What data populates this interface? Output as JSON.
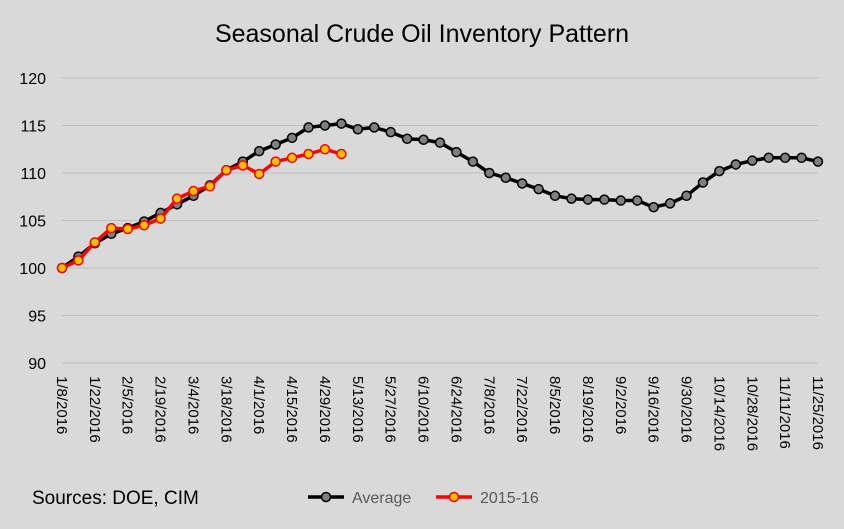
{
  "chart_data": {
    "type": "line",
    "title": "Seasonal Crude Oil Inventory Pattern",
    "source": "Sources:  DOE, CIM",
    "xlabel": "",
    "ylabel": "",
    "ylim": [
      90,
      120
    ],
    "yticks": [
      90,
      95,
      100,
      105,
      110,
      115,
      120
    ],
    "xtick_labels": [
      "1/8/2016",
      "1/22/2016",
      "2/5/2016",
      "2/19/2016",
      "3/4/2016",
      "3/18/2016",
      "4/1/2016",
      "4/15/2016",
      "4/29/2016",
      "5/13/2016",
      "5/27/2016",
      "6/10/2016",
      "6/24/2016",
      "7/8/2016",
      "7/22/2016",
      "8/5/2016",
      "8/19/2016",
      "9/2/2016",
      "9/16/2016",
      "9/30/2016",
      "10/14/2016",
      "10/28/2016",
      "11/11/2016",
      "11/25/2016"
    ],
    "x_weeks": [
      "1/8/2016",
      "1/15/2016",
      "1/22/2016",
      "1/29/2016",
      "2/5/2016",
      "2/12/2016",
      "2/19/2016",
      "2/26/2016",
      "3/4/2016",
      "3/11/2016",
      "3/18/2016",
      "3/25/2016",
      "4/1/2016",
      "4/8/2016",
      "4/15/2016",
      "4/22/2016",
      "4/29/2016",
      "5/6/2016",
      "5/13/2016",
      "5/20/2016",
      "5/27/2016",
      "6/3/2016",
      "6/10/2016",
      "6/17/2016",
      "6/24/2016",
      "7/1/2016",
      "7/8/2016",
      "7/15/2016",
      "7/22/2016",
      "7/29/2016",
      "8/5/2016",
      "8/12/2016",
      "8/19/2016",
      "8/26/2016",
      "9/2/2016",
      "9/9/2016",
      "9/16/2016",
      "9/23/2016",
      "9/30/2016",
      "10/7/2016",
      "10/14/2016",
      "10/21/2016",
      "10/28/2016",
      "11/4/2016",
      "11/11/2016",
      "11/18/2016",
      "11/25/2016"
    ],
    "grid": true,
    "legend_position": "bottom",
    "series": [
      {
        "name": "Average",
        "color": "#000000",
        "marker_fill": "#7f7f7f",
        "values": [
          100.0,
          101.2,
          102.6,
          103.6,
          104.2,
          104.9,
          105.8,
          106.7,
          107.6,
          108.7,
          110.3,
          111.2,
          112.3,
          113.0,
          113.7,
          114.8,
          115.0,
          115.2,
          114.6,
          114.8,
          114.3,
          113.6,
          113.5,
          113.2,
          112.2,
          111.2,
          110.0,
          109.5,
          108.9,
          108.3,
          107.6,
          107.3,
          107.2,
          107.2,
          107.1,
          107.1,
          106.4,
          106.8,
          107.6,
          109.0,
          110.2,
          110.9,
          111.3,
          111.6,
          111.6,
          111.6,
          111.2
        ]
      },
      {
        "name": "2015-16",
        "color": "#ff0000",
        "marker_fill": "#ffc000",
        "values": [
          100.0,
          100.8,
          102.7,
          104.2,
          104.1,
          104.5,
          105.2,
          107.3,
          108.1,
          108.6,
          110.3,
          110.8,
          109.9,
          111.2,
          111.6,
          112.0,
          112.5,
          112.0
        ]
      }
    ]
  }
}
